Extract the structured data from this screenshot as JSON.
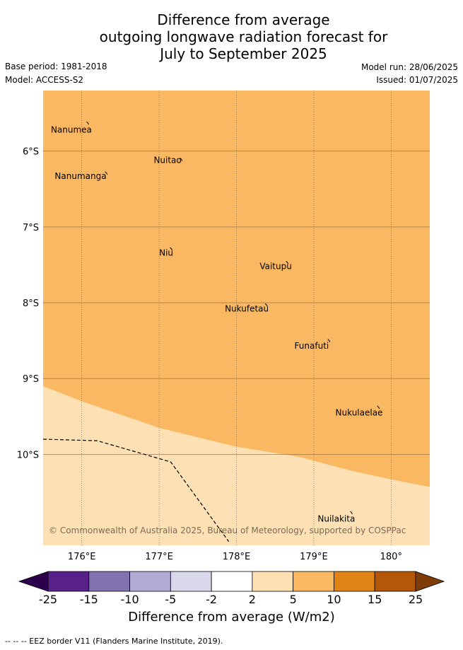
{
  "title": {
    "line1": "Difference from average",
    "line2": "outgoing longwave radiation forecast for",
    "line3": "July to September 2025"
  },
  "meta": {
    "base_period": "Base period: 1981-2018",
    "model": "Model: ACCESS-S2",
    "model_run": "Model run: 28/06/2025",
    "issued": "Issued: 01/07/2025"
  },
  "map": {
    "lon_range": [
      175.5,
      180.5
    ],
    "lat_range": [
      -11.2,
      -5.2
    ],
    "lon_ticks": [
      176,
      177,
      178,
      179,
      180
    ],
    "lon_tick_labels": [
      "176°E",
      "177°E",
      "178°E",
      "179°E",
      "180°"
    ],
    "lat_ticks": [
      -6,
      -7,
      -8,
      -9,
      -10
    ],
    "lat_tick_labels": [
      "6°S",
      "7°S",
      "8°S",
      "9°S",
      "10°S"
    ],
    "fill_colors": {
      "5 to 10": "#fbb862",
      "2 to 5": "#fde0b4"
    },
    "category_boundary": [
      [
        175.5,
        -9.1
      ],
      [
        176.0,
        -9.3
      ],
      [
        177.0,
        -9.65
      ],
      [
        178.0,
        -9.9
      ],
      [
        178.8,
        -10.03
      ],
      [
        179.5,
        -10.22
      ],
      [
        180.0,
        -10.33
      ],
      [
        180.5,
        -10.43
      ]
    ],
    "eez_border": [
      [
        175.5,
        -9.8
      ],
      [
        176.2,
        -9.82
      ],
      [
        177.15,
        -10.1
      ],
      [
        177.9,
        -11.15
      ]
    ],
    "places": [
      {
        "name": "Nanumea",
        "lon": 175.6,
        "lat": -5.72,
        "island": [
          176.08,
          -5.63
        ]
      },
      {
        "name": "Nuitao",
        "lon": 176.93,
        "lat": -6.12,
        "island": [
          177.29,
          -6.11
        ]
      },
      {
        "name": "Nanumanga",
        "lon": 175.65,
        "lat": -6.33,
        "island": [
          176.32,
          -6.29
        ]
      },
      {
        "name": "Niu",
        "lon": 177.0,
        "lat": -7.34,
        "island": [
          177.16,
          -7.29
        ]
      },
      {
        "name": "Vaitupu",
        "lon": 178.3,
        "lat": -7.52,
        "island": [
          178.66,
          -7.47
        ]
      },
      {
        "name": "Nukufetau",
        "lon": 177.85,
        "lat": -8.08,
        "island": [
          178.39,
          -8.03
        ]
      },
      {
        "name": "Funafuti",
        "lon": 178.75,
        "lat": -8.57,
        "island": [
          179.2,
          -8.5
        ]
      },
      {
        "name": "Nukulaelae",
        "lon": 179.28,
        "lat": -9.45,
        "island": [
          179.84,
          -9.38
        ]
      },
      {
        "name": "Nuilakita",
        "lon": 179.05,
        "lat": -10.85,
        "island": [
          179.49,
          -10.77
        ]
      }
    ],
    "credit": "© Commonwealth of Australia 2025, Bureau of Meteorology, supported by COSPPac"
  },
  "colorbar": {
    "title": "Difference from average (W/m2)",
    "tick_labels": [
      "-25",
      "-15",
      "-10",
      "-5",
      "-2",
      "2",
      "5",
      "10",
      "15",
      "25"
    ],
    "colors": [
      "#572189",
      "#8173ae",
      "#b1aad5",
      "#d9d9eb",
      "#ffffff",
      "#fde0b4",
      "#fbb862",
      "#e08214",
      "#b35806"
    ],
    "extend_low": "#2d004b",
    "extend_high": "#7f3b08"
  },
  "footer": "-- -- -- EEZ border V11 (Flanders Marine Institute, 2019)."
}
